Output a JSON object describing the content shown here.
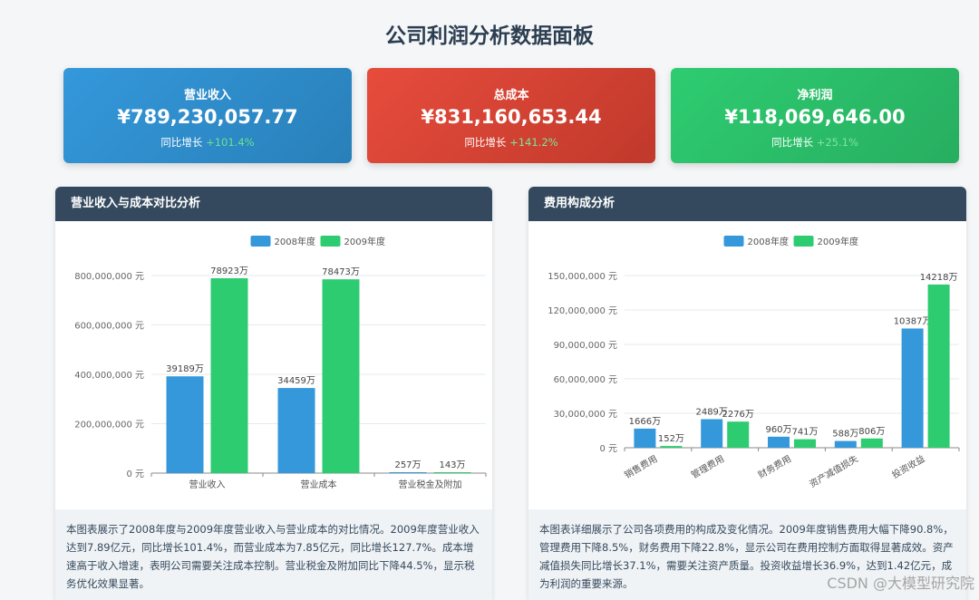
{
  "page": {
    "title": "公司利润分析数据面板"
  },
  "cards": [
    {
      "title": "营业收入",
      "value": "¥789,230,057.77",
      "growth_label": "同比增长",
      "growth_value": "+101.4%"
    },
    {
      "title": "总成本",
      "value": "¥831,160,653.44",
      "growth_label": "同比增长",
      "growth_value": "+141.2%"
    },
    {
      "title": "净利润",
      "value": "¥118,069,646.00",
      "growth_label": "同比增长",
      "growth_value": "+25.1%"
    }
  ],
  "colors": {
    "series_2008": "#3498db",
    "series_2009": "#2ecc71",
    "header": "#34495e"
  },
  "panels": [
    {
      "title": "营业收入与成本对比分析",
      "description": "本图表展示了2008年度与2009年度营业收入与营业成本的对比情况。2009年度营业收入达到7.89亿元，同比增长101.4%，而营业成本为7.85亿元，同比增长127.7%。成本增速高于收入增速，表明公司需要关注成本控制。营业税金及附加同比下降44.5%，显示税务优化效果显著。"
    },
    {
      "title": "费用构成分析",
      "description": "本图表详细展示了公司各项费用的构成及变化情况。2009年度销售费用大幅下降90.8%，管理费用下降8.5%，财务费用下降22.8%，显示公司在费用控制方面取得显著成效。资产减值损失同比增长37.1%，需要关注资产质量。投资收益增长36.9%，达到1.42亿元，成为利润的重要来源。"
    }
  ],
  "chart_data": [
    {
      "type": "bar",
      "categories": [
        "营业收入",
        "营业成本",
        "营业税金及附加"
      ],
      "series": [
        {
          "name": "2008年度",
          "values": [
            391890000,
            344590000,
            2570000
          ],
          "labels": [
            "39189万",
            "34459万",
            "257万"
          ]
        },
        {
          "name": "2009年度",
          "values": [
            789230000,
            784730000,
            1430000
          ],
          "labels": [
            "78923万",
            "78473万",
            "143万"
          ]
        }
      ],
      "ylim": [
        0,
        800000000
      ],
      "yticks": [
        0,
        200000000,
        400000000,
        600000000,
        800000000
      ],
      "ytick_labels": [
        "0 元",
        "200,000,000 元",
        "400,000,000 元",
        "600,000,000 元",
        "800,000,000 元"
      ],
      "legend": "top-center",
      "grid": true,
      "xlabel_rotate": false
    },
    {
      "type": "bar",
      "categories": [
        "销售费用",
        "管理费用",
        "财务费用",
        "资产减值损失",
        "投资收益"
      ],
      "series": [
        {
          "name": "2008年度",
          "values": [
            16660000,
            24890000,
            9600000,
            5880000,
            103870000
          ],
          "labels": [
            "1666万",
            "2489万",
            "960万",
            "588万",
            "10387万"
          ]
        },
        {
          "name": "2009年度",
          "values": [
            1520000,
            22760000,
            7410000,
            8060000,
            142180000
          ],
          "labels": [
            "152万",
            "2276万",
            "741万",
            "806万",
            "14218万"
          ]
        }
      ],
      "ylim": [
        0,
        150000000
      ],
      "yticks": [
        0,
        30000000,
        60000000,
        90000000,
        120000000,
        150000000
      ],
      "ytick_labels": [
        "0 元",
        "30,000,000 元",
        "60,000,000 元",
        "90,000,000 元",
        "120,000,000 元",
        "150,000,000 元"
      ],
      "legend": "top-center",
      "grid": true,
      "xlabel_rotate": true
    }
  ],
  "watermark": "CSDN @大模型研究院"
}
